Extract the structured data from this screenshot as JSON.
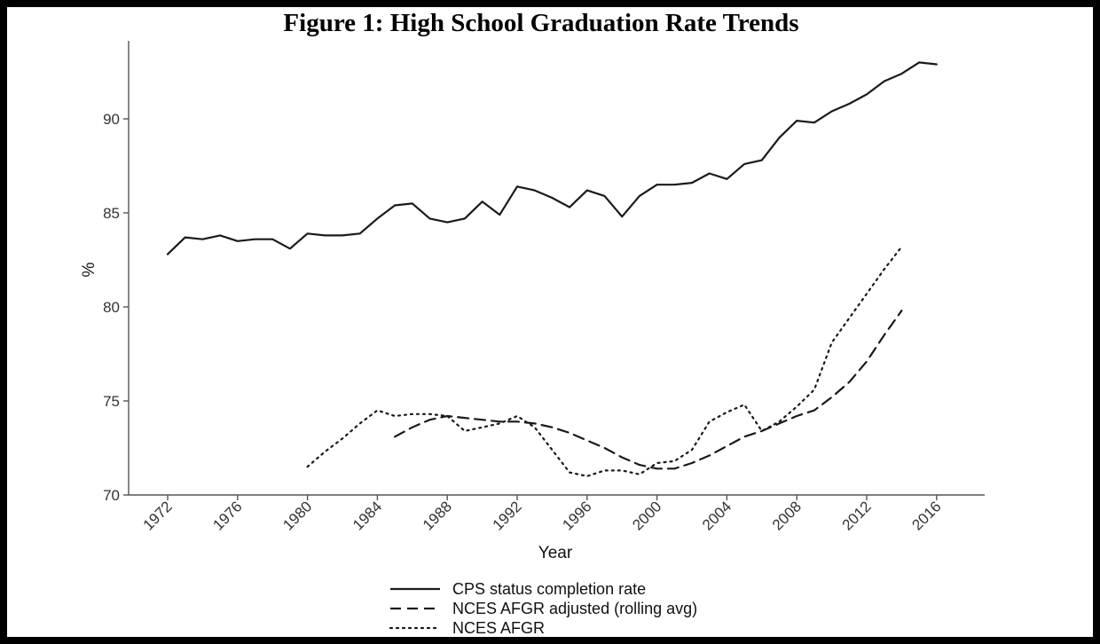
{
  "chart_data": {
    "type": "line",
    "title": "Figure 1: High School Graduation Rate Trends",
    "xlabel": "Year",
    "ylabel": "%",
    "xlim": [
      1971,
      2018
    ],
    "ylim": [
      70,
      93.5
    ],
    "x_ticks": [
      "1972",
      "1976",
      "1980",
      "1984",
      "1988",
      "1992",
      "1996",
      "2000",
      "2004",
      "2008",
      "2012",
      "2016"
    ],
    "y_ticks": [
      "70",
      "75",
      "80",
      "85",
      "90"
    ],
    "grid": false,
    "legend_position": "bottom",
    "series": [
      {
        "name": "CPS status completion rate",
        "style": "solid",
        "color": "#1a1a1a",
        "x": [
          1972,
          1973,
          1974,
          1975,
          1976,
          1977,
          1978,
          1979,
          1980,
          1981,
          1982,
          1983,
          1984,
          1985,
          1986,
          1987,
          1988,
          1989,
          1990,
          1991,
          1992,
          1993,
          1994,
          1995,
          1996,
          1997,
          1998,
          1999,
          2000,
          2001,
          2002,
          2003,
          2004,
          2005,
          2006,
          2007,
          2008,
          2009,
          2010,
          2011,
          2012,
          2013,
          2014,
          2015,
          2016
        ],
        "values": [
          82.8,
          83.7,
          83.6,
          83.8,
          83.5,
          83.6,
          83.6,
          83.1,
          83.9,
          83.8,
          83.8,
          83.9,
          84.7,
          85.4,
          85.5,
          84.7,
          84.5,
          84.7,
          85.6,
          84.9,
          86.4,
          86.2,
          85.8,
          85.3,
          86.2,
          85.9,
          84.8,
          85.9,
          86.5,
          86.5,
          86.6,
          87.1,
          86.8,
          87.6,
          87.8,
          89.0,
          89.9,
          89.8,
          90.4,
          90.8,
          91.3,
          92.0,
          92.4,
          93.0,
          92.9
        ]
      },
      {
        "name": "NCES AFGR adjusted (rolling avg)",
        "style": "dashed",
        "color": "#1a1a1a",
        "x": [
          1985,
          1986,
          1987,
          1988,
          1989,
          1990,
          1991,
          1992,
          1993,
          1994,
          1995,
          1996,
          1997,
          1998,
          1999,
          2000,
          2001,
          2002,
          2003,
          2004,
          2005,
          2006,
          2007,
          2008,
          2009,
          2010,
          2011,
          2012,
          2013,
          2014
        ],
        "values": [
          73.1,
          73.6,
          74.0,
          74.2,
          74.1,
          74.0,
          73.9,
          73.9,
          73.8,
          73.6,
          73.3,
          72.9,
          72.5,
          72.0,
          71.6,
          71.4,
          71.4,
          71.7,
          72.1,
          72.6,
          73.1,
          73.4,
          73.8,
          74.2,
          74.5,
          75.2,
          76.0,
          77.1,
          78.5,
          79.8
        ]
      },
      {
        "name": "NCES AFGR",
        "style": "dotted",
        "color": "#1a1a1a",
        "x": [
          1980,
          1981,
          1982,
          1983,
          1984,
          1985,
          1986,
          1987,
          1988,
          1989,
          1990,
          1991,
          1992,
          1993,
          1994,
          1995,
          1996,
          1997,
          1998,
          1999,
          2000,
          2001,
          2002,
          2003,
          2004,
          2005,
          2006,
          2007,
          2008,
          2009,
          2010,
          2011,
          2012,
          2013,
          2014
        ],
        "values": [
          71.5,
          72.3,
          73.0,
          73.8,
          74.5,
          74.2,
          74.3,
          74.3,
          74.2,
          73.4,
          73.6,
          73.8,
          74.2,
          73.6,
          72.4,
          71.2,
          71.0,
          71.3,
          71.3,
          71.1,
          71.7,
          71.8,
          72.4,
          73.9,
          74.4,
          74.8,
          73.4,
          73.9,
          74.7,
          75.6,
          78.1,
          79.4,
          80.7,
          82.0,
          83.2
        ]
      }
    ]
  }
}
